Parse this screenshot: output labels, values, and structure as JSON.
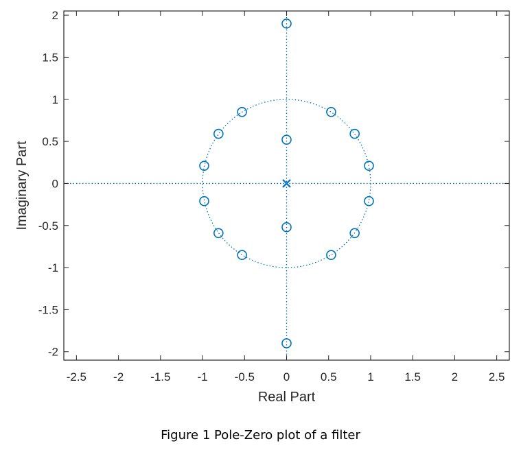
{
  "caption": "Figure 1 Pole-Zero plot of a filter",
  "chart_data": {
    "type": "scatter",
    "title": "",
    "xlabel": "Real Part",
    "ylabel": "Imaginary Part",
    "xlim": [
      -2.65,
      2.65
    ],
    "ylim": [
      -2.1,
      2.05
    ],
    "xticks": [
      -2.5,
      -2,
      -1.5,
      -1,
      -0.5,
      0,
      0.5,
      1,
      1.5,
      2,
      2.5
    ],
    "xtick_labels": [
      "-2.5",
      "-2",
      "-1.5",
      "-1",
      "-0.5",
      "0",
      "0.5",
      "1",
      "1.5",
      "2",
      "2.5"
    ],
    "yticks": [
      -2,
      -1.5,
      -1,
      -0.5,
      0,
      0.5,
      1,
      1.5,
      2
    ],
    "ytick_labels": [
      "-2",
      "-1.5",
      "-1",
      "-0.5",
      "0",
      "0.5",
      "1",
      "1.5",
      "2"
    ],
    "grid": false,
    "unit_circle": true,
    "zero_axes_lines": true,
    "marker_color": "#0072BD",
    "zeros": [
      {
        "x": 0,
        "y": 1.9
      },
      {
        "x": 0,
        "y": -1.9
      },
      {
        "x": 0,
        "y": 0.52
      },
      {
        "x": 0,
        "y": -0.52
      },
      {
        "x": 0.53,
        "y": 0.85
      },
      {
        "x": -0.53,
        "y": 0.85
      },
      {
        "x": 0.53,
        "y": -0.85
      },
      {
        "x": -0.53,
        "y": -0.85
      },
      {
        "x": 0.81,
        "y": 0.59
      },
      {
        "x": -0.81,
        "y": 0.59
      },
      {
        "x": 0.81,
        "y": -0.59
      },
      {
        "x": -0.81,
        "y": -0.59
      },
      {
        "x": 0.98,
        "y": 0.21
      },
      {
        "x": -0.98,
        "y": 0.21
      },
      {
        "x": 0.98,
        "y": -0.21
      },
      {
        "x": -0.98,
        "y": -0.21
      }
    ],
    "poles": [
      {
        "x": 0,
        "y": 0
      }
    ]
  }
}
